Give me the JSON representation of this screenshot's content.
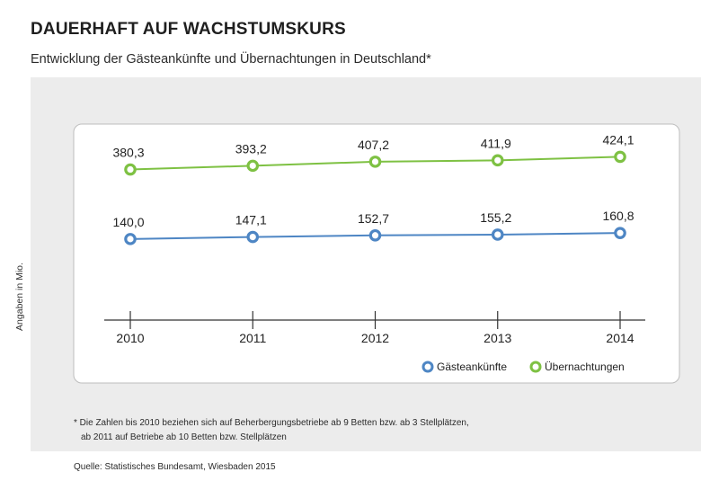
{
  "header": {
    "title": "DAUERHAFT AUF WACHSTUMSKURS",
    "subtitle": "Entwicklung der Gästeankünfte und Übernachtungen in Deutschland*"
  },
  "chart_data": {
    "type": "line",
    "title": "DAUERHAFT AUF WACHSTUMSKURS",
    "subtitle": "Entwicklung der Gästeankünfte und Übernachtungen in Deutschland*",
    "xlabel": "",
    "ylabel": "Angaben in Mio.",
    "categories": [
      "2010",
      "2011",
      "2012",
      "2013",
      "2014"
    ],
    "series": [
      {
        "name": "Gästeankünfte",
        "color": "#4e86c4",
        "values": [
          140.0,
          147.1,
          152.7,
          155.2,
          160.8
        ],
        "labels": [
          "140,0",
          "147,1",
          "152,7",
          "155,2",
          "160,8"
        ]
      },
      {
        "name": "Übernachtungen",
        "color": "#7ec143",
        "values": [
          380.3,
          393.2,
          407.2,
          411.9,
          424.1
        ],
        "labels": [
          "380,3",
          "393,2",
          "407,2",
          "411,9",
          "424,1"
        ]
      }
    ],
    "ylim": [
      -140,
      500
    ],
    "grid": false,
    "legend": "bottom-right"
  },
  "footnote": {
    "line1": "* Die Zahlen bis 2010 beziehen sich auf Beherbergungsbetriebe ab 9 Betten bzw. ab 3 Stellplätzen,",
    "line2": "ab 2011 auf Betriebe ab 10 Betten bzw. Stellplätzen"
  },
  "source": "Quelle: Statistisches Bundesamt, Wiesbaden 2015"
}
